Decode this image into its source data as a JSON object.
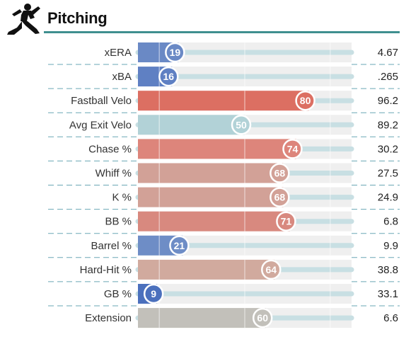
{
  "header": {
    "title": "Pitching",
    "icon": "pitcher-icon"
  },
  "chart_data": {
    "type": "bar",
    "categories": [
      "xERA",
      "xBA",
      "Fastball Velo",
      "Avg Exit Velo",
      "Chase %",
      "Whiff %",
      "K %",
      "BB %",
      "Barrel %",
      "Hard-Hit %",
      "GB %",
      "Extension"
    ],
    "values": [
      19,
      16,
      80,
      50,
      74,
      68,
      68,
      71,
      21,
      64,
      9,
      60
    ],
    "stat_values": [
      "4.67",
      ".265",
      "96.2",
      "89.2",
      "30.2",
      "27.5",
      "24.9",
      "6.8",
      "9.9",
      "38.8",
      "33.1",
      "6.6"
    ],
    "colors": [
      "#6a89c5",
      "#5f80c3",
      "#dc6f62",
      "#b2d2d7",
      "#dd857b",
      "#d2a197",
      "#d2a197",
      "#d8897f",
      "#6e8dc6",
      "#d1aa9e",
      "#4b70bd",
      "#c2c0ba"
    ],
    "xlim": [
      0,
      100
    ],
    "grid": true
  }
}
